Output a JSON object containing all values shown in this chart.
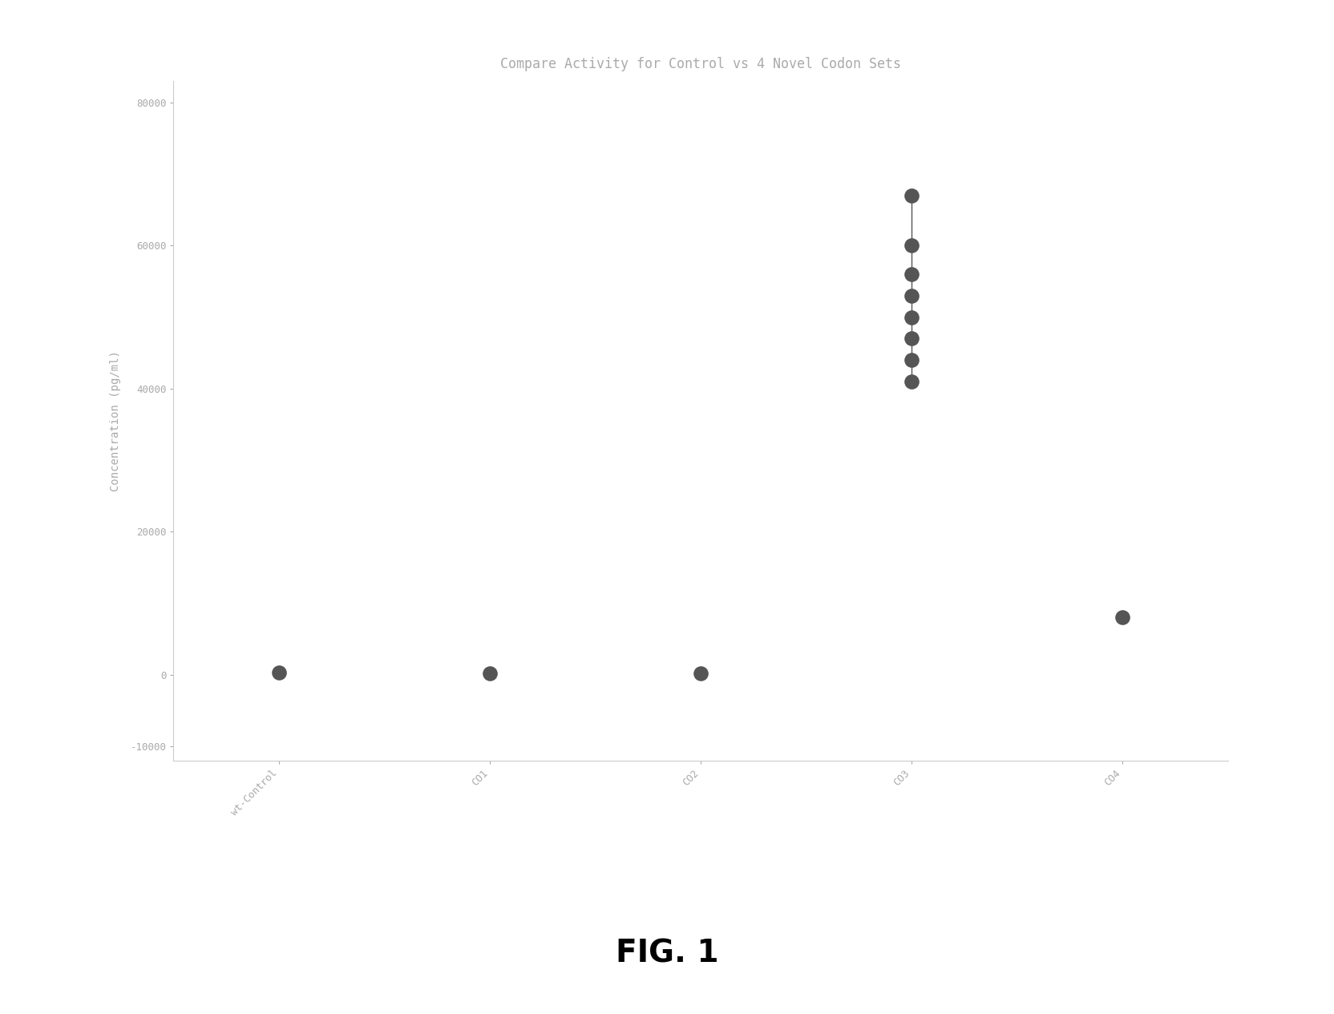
{
  "title": "Compare Activity for Control vs 4 Novel Codon Sets",
  "ylabel": "Concentration (pg/ml)",
  "categories": [
    "wt-Control",
    "CO1",
    "CO2",
    "CO3",
    "CO4"
  ],
  "x_positions": [
    1,
    2,
    3,
    4,
    5
  ],
  "data_points": {
    "wt-Control": [
      300
    ],
    "CO1": [
      200
    ],
    "CO2": [
      150
    ],
    "CO3": [
      67000,
      60000,
      56000,
      53000,
      50000,
      47000,
      44000,
      41000
    ],
    "CO4": [
      8000
    ]
  },
  "ylim": [
    -12000,
    83000
  ],
  "yticks": [
    -10000,
    0,
    20000,
    40000,
    60000,
    80000
  ],
  "ytick_labels": [
    "-10000",
    "0",
    "20000",
    "40000",
    "60000",
    "80000"
  ],
  "marker_color": "#555555",
  "marker_size": 180,
  "fig_caption": "FIG. 1",
  "background_color": "#ffffff",
  "plot_bg_color": "#ffffff",
  "title_fontsize": 12,
  "axis_fontsize": 10,
  "tick_fontsize": 9,
  "caption_fontsize": 28
}
